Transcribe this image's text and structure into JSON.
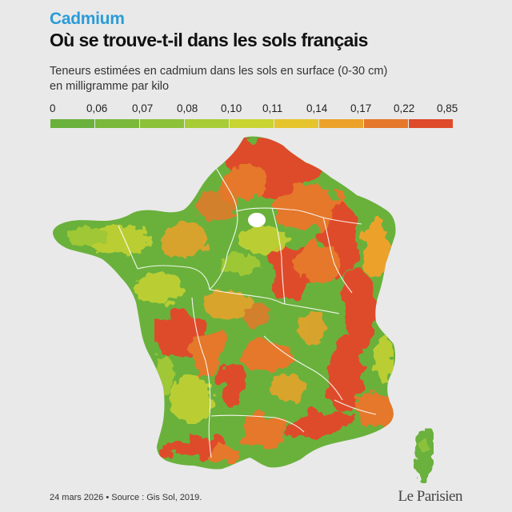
{
  "header": {
    "kicker": "Cadmium",
    "title": "Où se trouve-t-il dans les sols français",
    "subtitle_line1": "Teneurs estimées en cadmium dans les sols en surface (0-30 cm)",
    "subtitle_line2": "en milligramme par kilo"
  },
  "legend": {
    "labels": [
      "0",
      "0,06",
      "0,07",
      "0,08",
      "0,10",
      "0,11",
      "0,14",
      "0,17",
      "0,22",
      "0,85"
    ],
    "colors": [
      "#6ab13c",
      "#79b83a",
      "#8cc13a",
      "#a8cc36",
      "#c8d431",
      "#e6c42c",
      "#eca22a",
      "#e5782a",
      "#de4b2a"
    ]
  },
  "map": {
    "regions": [
      "France métropolitaine",
      "Corse"
    ]
  },
  "footer": {
    "source": "24 mars 2026 • Source : Gis Sol, 2019.",
    "logo": "Le Parisien"
  }
}
